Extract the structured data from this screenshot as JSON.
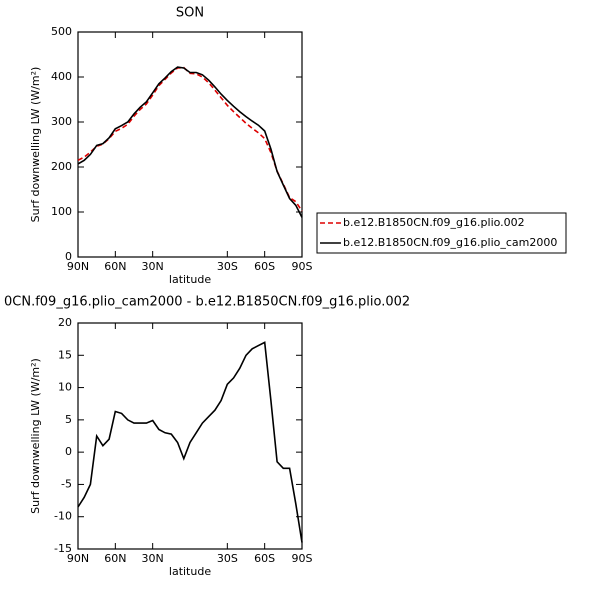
{
  "chart_data": [
    {
      "type": "line",
      "title": "SON",
      "xlabel": "latitude",
      "ylabel": "Surf downwelling LW (W/m²)",
      "x": [
        90,
        85,
        80,
        75,
        70,
        65,
        60,
        55,
        50,
        45,
        40,
        35,
        30,
        25,
        20,
        15,
        10,
        5,
        0,
        -5,
        -10,
        -15,
        -20,
        -25,
        -30,
        -35,
        -40,
        -45,
        -50,
        -55,
        -60,
        -65,
        -70,
        -75,
        -80,
        -85,
        -90
      ],
      "series": [
        {
          "name": "b.e12.B1850CN.f09_g16.plio.002",
          "color": "#dd0000",
          "dashed": true,
          "values": [
            215,
            222,
            233,
            246,
            251,
            263,
            279,
            286,
            295,
            313,
            328,
            340,
            360,
            381,
            395,
            409,
            420,
            421,
            408,
            407,
            400,
            387,
            371,
            354,
            337,
            323,
            310,
            297,
            286,
            276,
            263,
            232,
            191,
            162,
            132,
            123,
            102
          ]
        },
        {
          "name": "b.e12.B1850CN.f09_g16.plio_cam2000",
          "color": "#000000",
          "dashed": false,
          "values": [
            207,
            215,
            228,
            248,
            252,
            265,
            285,
            292,
            300,
            318,
            333,
            345,
            365,
            385,
            398,
            412,
            422,
            420,
            410,
            410,
            405,
            393,
            378,
            362,
            348,
            335,
            323,
            312,
            302,
            293,
            280,
            240,
            190,
            160,
            130,
            115,
            88
          ]
        }
      ],
      "xlim": [
        90,
        -90
      ],
      "xticks": [
        {
          "value": 90,
          "label": "90N"
        },
        {
          "value": 60,
          "label": "60N"
        },
        {
          "value": 30,
          "label": "30N"
        },
        {
          "value": -30,
          "label": "30S"
        },
        {
          "value": -60,
          "label": "60S"
        },
        {
          "value": -90,
          "label": "90S"
        }
      ],
      "ylim": [
        0,
        500
      ],
      "yticks": [
        0,
        100,
        200,
        300,
        400,
        500
      ],
      "legend": "right"
    },
    {
      "type": "line",
      "title": "0CN.f09_g16.plio_cam2000 - b.e12.B1850CN.f09_g16.plio.002",
      "xlabel": "latitude",
      "ylabel": "Surf downwelling LW (W/m²)",
      "x": [
        90,
        85,
        80,
        75,
        70,
        65,
        60,
        55,
        50,
        45,
        40,
        35,
        30,
        25,
        20,
        15,
        10,
        5,
        0,
        -5,
        -10,
        -15,
        -20,
        -25,
        -30,
        -35,
        -40,
        -45,
        -50,
        -55,
        -60,
        -65,
        -70,
        -75,
        -80,
        -85,
        -90
      ],
      "series": [
        {
          "color": "#000000",
          "dashed": false,
          "values": [
            -8.5,
            -7,
            -5,
            2.5,
            1,
            2,
            6.3,
            6,
            5,
            4.5,
            4.5,
            4.5,
            4.9,
            3.5,
            3,
            2.8,
            1.5,
            -1,
            1.5,
            3,
            4.5,
            5.5,
            6.5,
            8,
            10.5,
            11.5,
            13,
            15,
            16,
            16.5,
            17,
            8,
            -1.5,
            -2.5,
            -2.5,
            -8,
            -14
          ]
        }
      ],
      "xlim": [
        90,
        -90
      ],
      "xticks": [
        {
          "value": 90,
          "label": "90N"
        },
        {
          "value": 60,
          "label": "60N"
        },
        {
          "value": 30,
          "label": "30N"
        },
        {
          "value": -30,
          "label": "30S"
        },
        {
          "value": -60,
          "label": "60S"
        },
        {
          "value": -90,
          "label": "90S"
        }
      ],
      "ylim": [
        -15,
        20
      ],
      "yticks": [
        -15,
        -10,
        -5,
        0,
        5,
        10,
        15,
        20
      ]
    }
  ]
}
